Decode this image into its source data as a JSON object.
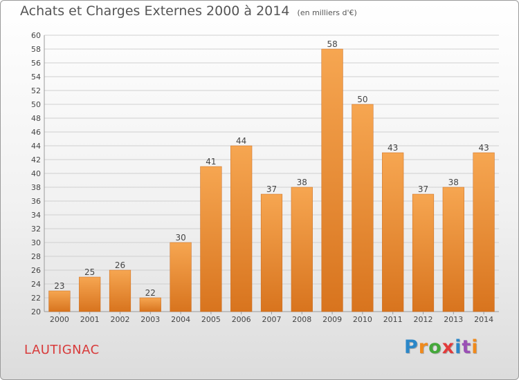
{
  "header": {
    "title": "Achats et Charges Externes 2000 à 2014",
    "unit": "(en milliers d'€)"
  },
  "commune": "LAUTIGNAC",
  "brand": {
    "logo_text": "Proxiti",
    "colors": [
      "#2b87c8",
      "#f08a1c",
      "#44a83a",
      "#e23b3b",
      "#2b87c8",
      "#9a4fb5",
      "#f08a1c"
    ]
  },
  "colors": {
    "bar_top": "#f6a651",
    "bar_bottom": "#d8741e",
    "axis_text": "#444444",
    "grid": "#cfcfcf",
    "title": "#555555",
    "commune": "#d83a3a"
  },
  "chart_data": {
    "type": "bar",
    "title": "Achats et Charges Externes 2000 à 2014",
    "subtitle": "(en milliers d'€)",
    "xlabel": "",
    "ylabel": "",
    "categories": [
      "2000",
      "2001",
      "2002",
      "2003",
      "2004",
      "2005",
      "2006",
      "2007",
      "2008",
      "2009",
      "2010",
      "2011",
      "2012",
      "2013",
      "2014"
    ],
    "values": [
      23,
      25,
      26,
      22,
      30,
      41,
      44,
      37,
      38,
      58,
      50,
      43,
      37,
      38,
      43
    ],
    "ylim": [
      20,
      60
    ],
    "ytick_step": 2,
    "grid": true,
    "data_labels": true,
    "legend": "none"
  }
}
